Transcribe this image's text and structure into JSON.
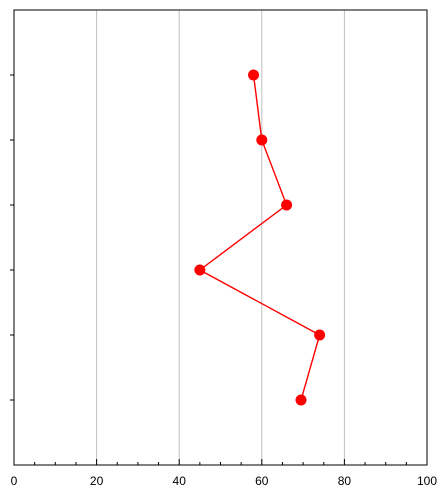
{
  "chart_data": {
    "type": "line",
    "title": "",
    "xlabel": "",
    "ylabel": "",
    "orientation": "horizontal-values",
    "xlim": [
      0,
      100
    ],
    "x_ticks": [
      0,
      20,
      40,
      60,
      80,
      100
    ],
    "x_tick_labels": [
      "0",
      "20",
      "40",
      "60",
      "80",
      "100"
    ],
    "x_minor_step": 5,
    "y_ticks_count": 6,
    "grid": "vertical",
    "series": [
      {
        "color": "#ff0000",
        "marker": "circle",
        "points": [
          {
            "x": 58,
            "y": 6
          },
          {
            "x": 60,
            "y": 5
          },
          {
            "x": 66,
            "y": 4
          },
          {
            "x": 45,
            "y": 3
          },
          {
            "x": 74,
            "y": 2
          },
          {
            "x": 69.5,
            "y": 1
          }
        ]
      }
    ],
    "ylim": [
      0,
      7
    ],
    "colors": {
      "grid": "#c0c0c0",
      "axis": "#000000",
      "series": "#ff0000"
    }
  }
}
